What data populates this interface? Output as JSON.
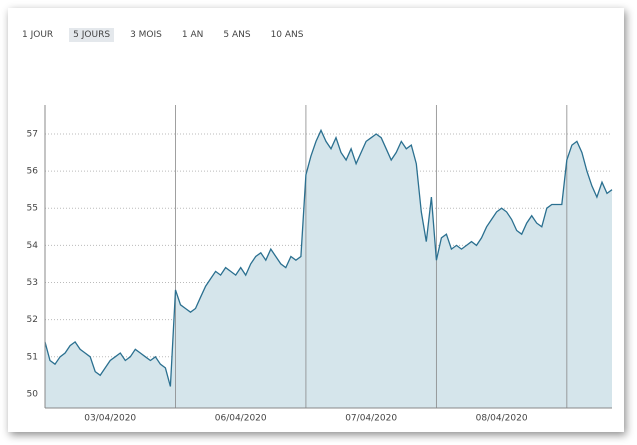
{
  "tabs": [
    "1 JOUR",
    "5 JOURS",
    "3 MOIS",
    "1 AN",
    "5 ANS",
    "10 ANS"
  ],
  "selected_tab": 1,
  "chart_data": {
    "type": "area",
    "categories": [
      null,
      null,
      null,
      null,
      null,
      null,
      null,
      null,
      null,
      null,
      null,
      null,
      null,
      "03/04/2020",
      null,
      null,
      null,
      null,
      null,
      null,
      null,
      null,
      null,
      null,
      null,
      null,
      null,
      null,
      null,
      null,
      null,
      null,
      null,
      null,
      null,
      null,
      null,
      null,
      null,
      "06/04/2020",
      null,
      null,
      null,
      null,
      null,
      null,
      null,
      null,
      null,
      null,
      null,
      null,
      null,
      null,
      null,
      null,
      null,
      null,
      null,
      null,
      null,
      null,
      null,
      null,
      null,
      "07/04/2020",
      null,
      null,
      null,
      null,
      null,
      null,
      null,
      null,
      null,
      null,
      null,
      null,
      null,
      null,
      null,
      null,
      null,
      null,
      null,
      null,
      null,
      null,
      null,
      null,
      null,
      "08/04/2020",
      null,
      null,
      null,
      null,
      null,
      null,
      null,
      null,
      null,
      null,
      null,
      null,
      null,
      null,
      null,
      null,
      null,
      null,
      null,
      null,
      null,
      null
    ],
    "values": [
      51.4,
      50.9,
      50.8,
      51.0,
      51.1,
      51.3,
      51.4,
      51.2,
      51.1,
      51.0,
      50.6,
      50.5,
      50.7,
      50.9,
      51.0,
      51.1,
      50.9,
      51.0,
      51.2,
      51.1,
      51.0,
      50.9,
      51.0,
      50.8,
      50.7,
      50.2,
      52.8,
      52.4,
      52.3,
      52.2,
      52.3,
      52.6,
      52.9,
      53.1,
      53.3,
      53.2,
      53.4,
      53.3,
      53.2,
      53.4,
      53.2,
      53.5,
      53.7,
      53.8,
      53.6,
      53.9,
      53.7,
      53.5,
      53.4,
      53.7,
      53.6,
      53.7,
      55.9,
      56.4,
      56.8,
      57.1,
      56.8,
      56.6,
      56.9,
      56.5,
      56.3,
      56.6,
      56.2,
      56.5,
      56.8,
      56.9,
      57.0,
      56.9,
      56.6,
      56.3,
      56.5,
      56.8,
      56.6,
      56.7,
      56.2,
      54.9,
      54.1,
      55.3,
      53.6,
      54.2,
      54.3,
      53.9,
      54.0,
      53.9,
      54.0,
      54.1,
      54.0,
      54.2,
      54.5,
      54.7,
      54.9,
      55.0,
      54.9,
      54.7,
      54.4,
      54.3,
      54.6,
      54.8,
      54.6,
      54.5,
      55.0,
      55.1,
      55.1,
      55.1,
      56.3,
      56.7,
      56.8,
      56.5,
      56.0,
      55.6,
      55.3,
      55.7,
      55.4,
      55.5
    ],
    "color": "#2b7090",
    "fill": "#d5e5eb",
    "ylim": [
      49.62,
      57.78
    ],
    "yticks": [
      50,
      51,
      52,
      53,
      54,
      55,
      56,
      57
    ],
    "grid": true
  }
}
